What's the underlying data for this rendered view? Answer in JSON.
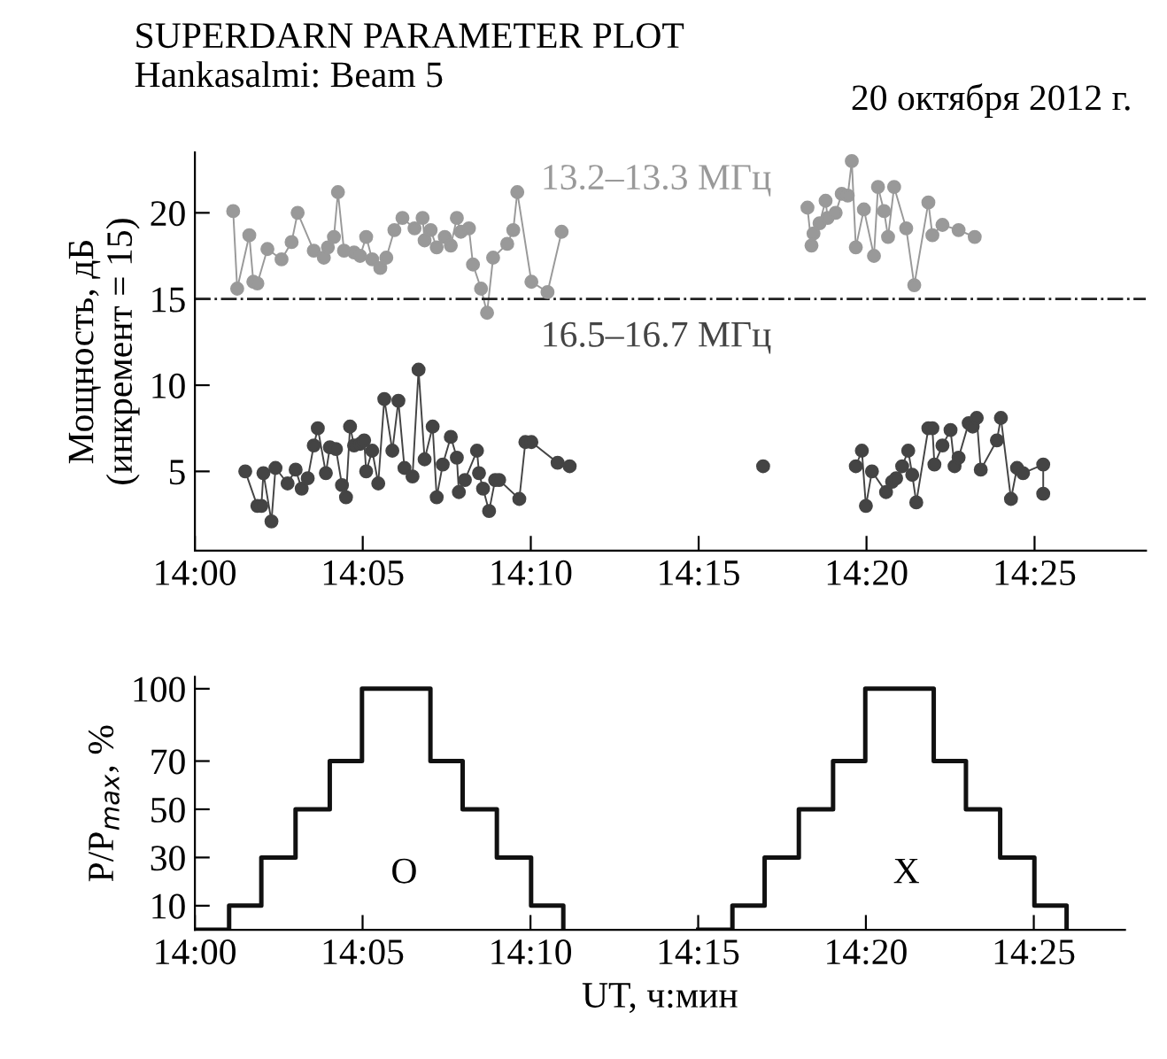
{
  "chart_data": [
    {
      "type": "line",
      "title": "SUPERDARN PARAMETER PLOT",
      "subtitle": "Hankasalmi: Beam 5",
      "annotations": [
        "20 октября 2012 г."
      ],
      "ylabel": "Мощность, дБ\n(инкремент = 15)",
      "marker": "circle",
      "grid": false,
      "xlim": [
        14,
        14.472
      ],
      "xticks": [
        {
          "value": 14,
          "label": "14:00"
        },
        {
          "value": 14.0833,
          "label": "14:05"
        },
        {
          "value": 14.1667,
          "label": "14:10"
        },
        {
          "value": 14.25,
          "label": "14:15"
        },
        {
          "value": 14.3333,
          "label": "14:20"
        },
        {
          "value": 14.4167,
          "label": "14:25"
        }
      ],
      "ylim": [
        0.4,
        23.5
      ],
      "yticks": [
        5,
        10,
        15,
        20
      ],
      "ref_lines": [
        {
          "axis": "y",
          "value": 15,
          "color": "#222222",
          "line_style": "dashdot"
        }
      ],
      "series": [
        {
          "name": "13.2–13.3 МГц",
          "color": "#999999",
          "x": [
            14.019,
            14.021,
            14.027,
            14.029,
            14.031,
            14.036,
            14.043,
            14.048,
            14.051,
            14.059,
            14.064,
            14.066,
            14.069,
            14.071,
            14.074,
            14.079,
            14.082,
            14.085,
            14.088,
            14.092,
            14.095,
            14.099,
            14.103,
            14.109,
            14.113,
            14.114,
            14.117,
            14.12,
            14.124,
            14.127,
            14.13,
            14.132,
            14.136,
            14.138,
            14.142,
            14.145,
            14.148,
            14.155,
            14.158,
            14.16,
            14.167,
            14.175,
            14.182,
            14.24,
            14.304,
            14.306,
            14.307,
            14.31,
            14.313,
            14.314,
            14.318,
            14.321,
            14.324,
            14.326,
            14.328,
            14.332,
            14.337,
            14.339,
            14.342,
            14.344,
            14.347,
            14.353,
            14.357,
            14.364,
            14.366,
            14.371,
            14.379,
            14.387
          ],
          "values": [
            20.1,
            15.6,
            18.7,
            16.0,
            15.9,
            17.9,
            17.3,
            18.3,
            20.0,
            17.8,
            17.4,
            18.0,
            18.6,
            21.2,
            17.8,
            17.7,
            17.5,
            18.6,
            17.3,
            16.8,
            17.4,
            19.0,
            19.7,
            19.1,
            19.7,
            18.4,
            19.0,
            18.0,
            18.6,
            18.1,
            19.7,
            18.9,
            19.1,
            17.0,
            15.6,
            14.2,
            17.4,
            18.2,
            19.0,
            21.2,
            16.0,
            15.4,
            18.9,
            null,
            20.3,
            18.1,
            18.8,
            19.4,
            20.7,
            19.7,
            20.0,
            21.1,
            21.0,
            23.0,
            18.0,
            20.2,
            17.5,
            21.5,
            20.1,
            18.6,
            21.5,
            19.1,
            15.8,
            20.6,
            18.7,
            19.3,
            19.0,
            18.6
          ]
        },
        {
          "name": "16.5–16.7 МГц",
          "color": "#444444",
          "x": [
            14.025,
            14.031,
            14.033,
            14.034,
            14.038,
            14.04,
            14.046,
            14.05,
            14.053,
            14.056,
            14.059,
            14.061,
            14.065,
            14.067,
            14.07,
            14.073,
            14.075,
            14.077,
            14.079,
            14.082,
            14.084,
            14.085,
            14.088,
            14.091,
            14.094,
            14.098,
            14.101,
            14.104,
            14.108,
            14.111,
            14.114,
            14.118,
            14.12,
            14.123,
            14.127,
            14.13,
            14.131,
            14.134,
            14.14,
            14.141,
            14.143,
            14.146,
            14.149,
            14.151,
            14.161,
            14.164,
            14.167,
            14.18,
            14.186,
            14.23,
            14.282,
            14.31,
            14.328,
            14.331,
            14.333,
            14.336,
            14.343,
            14.346,
            14.348,
            14.351,
            14.354,
            14.356,
            14.358,
            14.364,
            14.366,
            14.367,
            14.371,
            14.375,
            14.377,
            14.379,
            14.384,
            14.386,
            14.388,
            14.39,
            14.398,
            14.4,
            14.405,
            14.408,
            14.411,
            14.421,
            14.421
          ],
          "values": [
            5.0,
            3.0,
            3.0,
            4.9,
            2.1,
            5.2,
            4.3,
            5.1,
            4.0,
            4.6,
            6.5,
            7.5,
            4.9,
            6.4,
            6.3,
            4.2,
            3.5,
            7.6,
            6.5,
            6.6,
            6.8,
            5.0,
            6.2,
            4.3,
            9.2,
            6.2,
            9.1,
            5.2,
            4.7,
            10.9,
            5.7,
            7.6,
            3.5,
            5.4,
            7.0,
            5.8,
            3.8,
            4.5,
            6.2,
            4.9,
            4.0,
            2.7,
            4.5,
            4.5,
            3.4,
            6.7,
            6.7,
            5.5,
            5.3,
            null,
            5.3,
            null,
            5.3,
            6.2,
            3.0,
            5.0,
            3.8,
            4.4,
            4.6,
            5.3,
            6.2,
            4.8,
            3.2,
            7.5,
            7.5,
            5.4,
            6.5,
            7.4,
            5.3,
            5.8,
            7.8,
            7.6,
            8.1,
            5.1,
            6.8,
            8.1,
            3.4,
            5.2,
            4.9,
            5.4,
            3.7
          ]
        }
      ]
    },
    {
      "type": "step",
      "ylabel": "P/P$_{max}$, %",
      "xlabel": "UT, ч:мин",
      "grid": false,
      "annotations": [
        "O",
        "X"
      ],
      "xlim": [
        14,
        14.462
      ],
      "xticks": [
        {
          "value": 14,
          "label": "14:00"
        },
        {
          "value": 14.0833,
          "label": "14:05"
        },
        {
          "value": 14.1667,
          "label": "14:10"
        },
        {
          "value": 14.25,
          "label": "14:15"
        },
        {
          "value": 14.3333,
          "label": "14:20"
        },
        {
          "value": 14.4167,
          "label": "14:25"
        }
      ],
      "ylim": [
        0,
        105
      ],
      "yticks": [
        10,
        30,
        50,
        70,
        100
      ],
      "series": [
        {
          "color": "#111111",
          "x": [
            14.0,
            14.017,
            14.033,
            14.05,
            14.067,
            14.083,
            14.117,
            14.133,
            14.15,
            14.167,
            14.183
          ],
          "values": [
            0,
            10,
            30,
            50,
            70,
            100,
            70,
            50,
            30,
            10,
            0
          ]
        },
        {
          "color": "#111111",
          "x": [
            14.25,
            14.267,
            14.283,
            14.3,
            14.317,
            14.333,
            14.367,
            14.383,
            14.4,
            14.417,
            14.433
          ],
          "values": [
            0,
            10,
            30,
            50,
            70,
            100,
            70,
            50,
            30,
            10,
            0
          ]
        }
      ]
    }
  ]
}
